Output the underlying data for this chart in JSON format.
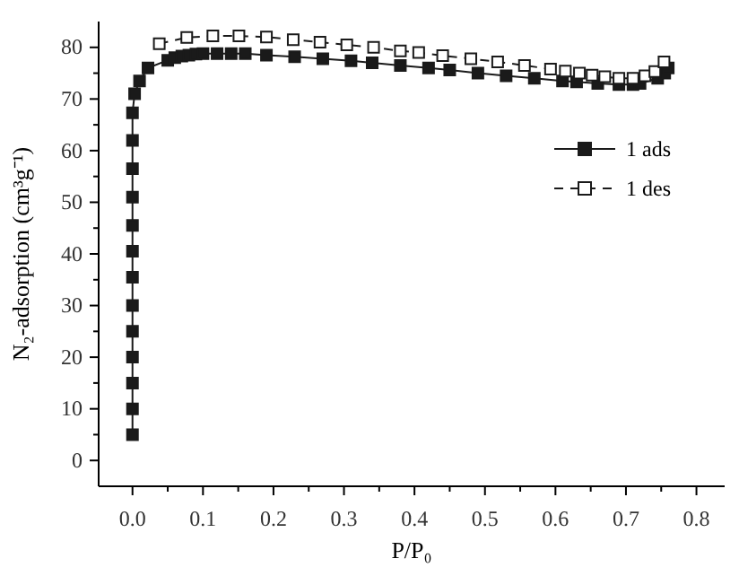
{
  "chart_data": {
    "type": "line",
    "xlabel": "P/P₀",
    "ylabel": "N₂-adsorption (cm³g⁻¹)",
    "xlim": [
      -0.048,
      0.84
    ],
    "ylim": [
      -5,
      85
    ],
    "xticks": [
      {
        "value": 0,
        "label": "0.0"
      },
      {
        "value": 0.05,
        "label": null
      },
      0.1,
      {
        "value": 0.15,
        "label": null
      },
      0.2,
      {
        "value": 0.25,
        "label": null
      },
      0.3,
      {
        "value": 0.35,
        "label": null
      },
      0.4,
      {
        "value": 0.45,
        "label": null
      },
      0.5,
      {
        "value": 0.55,
        "label": null
      },
      0.6,
      {
        "value": 0.65,
        "label": null
      },
      0.7,
      {
        "value": 0.75,
        "label": null
      },
      0.8
    ],
    "yticks": [
      0,
      {
        "value": 5,
        "label": null
      },
      10,
      {
        "value": 15,
        "label": null
      },
      20,
      {
        "value": 25,
        "label": null
      },
      30,
      {
        "value": 35,
        "label": null
      },
      40,
      {
        "value": 45,
        "label": null
      },
      50,
      {
        "value": 55,
        "label": null
      },
      60,
      {
        "value": 65,
        "label": null
      },
      70,
      {
        "value": 75,
        "label": null
      },
      80
    ],
    "legend": "top right",
    "grid": false,
    "series": [
      {
        "name": "1 ads",
        "color": "#1a1a1a",
        "marker": "square",
        "line_style": "solid",
        "x": [
          0,
          0,
          0,
          0,
          0,
          0,
          0,
          0,
          0,
          0,
          0,
          0,
          0,
          0.003,
          0.01,
          0.022,
          0.05,
          0.06,
          0.07,
          0.08,
          0.09,
          0.1,
          0.12,
          0.14,
          0.16,
          0.19,
          0.23,
          0.27,
          0.31,
          0.34,
          0.38,
          0.42,
          0.45,
          0.49,
          0.53,
          0.57,
          0.61,
          0.63,
          0.66,
          0.69,
          0.71,
          0.72,
          0.745,
          0.755,
          0.76
        ],
        "values": [
          5,
          10,
          15,
          20,
          25,
          30,
          35.5,
          40.5,
          45.5,
          51,
          56.5,
          62,
          67.3,
          71,
          73.5,
          76,
          77.5,
          78,
          78.3,
          78.5,
          78.7,
          78.8,
          78.8,
          78.8,
          78.8,
          78.5,
          78.2,
          77.8,
          77.4,
          77,
          76.5,
          76,
          75.6,
          75,
          74.5,
          74,
          73.5,
          73.3,
          73,
          72.8,
          72.8,
          73,
          74,
          75,
          76
        ]
      },
      {
        "name": "1 des",
        "color": "#1a1a1a",
        "marker": "square",
        "line_style": "dashed",
        "x": [
          0.038,
          0.077,
          0.114,
          0.151,
          0.19,
          0.228,
          0.266,
          0.304,
          0.342,
          0.38,
          0.406,
          0.44,
          0.48,
          0.518,
          0.556,
          0.593,
          0.614,
          0.634,
          0.652,
          0.67,
          0.69,
          0.71,
          0.727,
          0.741,
          0.754
        ],
        "values": [
          80.7,
          81.9,
          82.2,
          82.2,
          82,
          81.5,
          81,
          80.5,
          80,
          79.3,
          79,
          78.4,
          77.8,
          77.2,
          76.5,
          75.8,
          75.4,
          75,
          74.6,
          74.3,
          74,
          74,
          74.5,
          75.3,
          77.2
        ]
      }
    ]
  }
}
